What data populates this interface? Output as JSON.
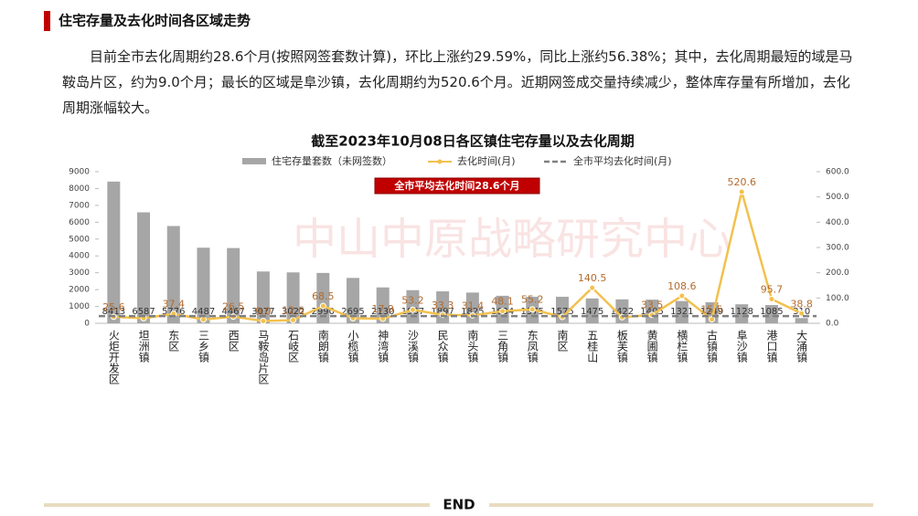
{
  "header": {
    "title": "住宅存量及去化时间各区域走势"
  },
  "paragraph": "目前全市去化周期约28.6个月(按照网签套数计算)，环比上涨约29.59%，同比上涨约56.38%；其中，去化周期最短的域是马鞍岛片区，约为9.0个月；最长的区域是阜沙镇，去化周期约为520.6个月。近期网签成交量持续减少，整体库存量有所增加，去化周期涨幅较大。",
  "footer": "END",
  "chart_data": {
    "type": "bar_line",
    "title": "截至2023年10月08日各区镇住宅存量以及去化周期",
    "categories": [
      "火炬开发区",
      "坦洲镇",
      "东区",
      "三乡镇",
      "西区",
      "马鞍岛片区",
      "石岐区",
      "南朗镇",
      "小榄镇",
      "神湾镇",
      "沙溪镇",
      "民众镇",
      "南头镇",
      "三角镇",
      "东凤镇",
      "南区",
      "五桂山",
      "板芙镇",
      "黄圃镇",
      "横栏镇",
      "古镇镇",
      "阜沙镇",
      "港口镇",
      "大涌镇"
    ],
    "series": [
      {
        "name": "住宅存量套数（未网签数）",
        "color": "#a6a6a6",
        "type": "bar",
        "values": [
          8413,
          6587,
          5776,
          4487,
          4467,
          3077,
          3022,
          2990,
          2695,
          2130,
          1967,
          1897,
          1825,
          1634,
          1575,
          1575,
          1475,
          1422,
          1405,
          1321,
          1249,
          1128,
          1085,
          310
        ]
      },
      {
        "name": "去化时间(月)",
        "color": "#f2c14e",
        "type": "line",
        "axis": "y2",
        "values": [
          25.6,
          20,
          37.4,
          15,
          26.5,
          9.0,
          12.6,
          68.5,
          20,
          17.9,
          53.2,
          33.3,
          31.4,
          48.1,
          55.2,
          25,
          140.5,
          24,
          33.5,
          108.6,
          15.5,
          520.6,
          95.7,
          38.8
        ],
        "value_labels": [
          "25.6",
          null,
          "37.4",
          null,
          "26.5",
          "9.0",
          "12.6",
          "68.5",
          null,
          "17.9",
          "53.2",
          "33.3",
          "31.4",
          "48.1",
          "55.2",
          null,
          "140.5",
          null,
          "33.5",
          "108.6",
          "15.5",
          "520.6",
          "95.7",
          "38.8"
        ]
      },
      {
        "name": "全市平均去化时间(月)",
        "color": "#808080",
        "type": "hline",
        "axis": "y2",
        "value": 28.6
      }
    ],
    "annotation": "全市平均去化时间28.6个月",
    "ylim": [
      0,
      9000
    ],
    "yticks": [
      0,
      1000,
      2000,
      3000,
      4000,
      5000,
      6000,
      7000,
      8000,
      9000
    ],
    "y2lim": [
      0,
      600
    ],
    "y2ticks": [
      {
        "value": 0,
        "label": "0.0"
      },
      {
        "value": 100,
        "label": "100.0"
      },
      {
        "value": 200,
        "label": "200.0"
      },
      {
        "value": 300,
        "label": "300.0"
      },
      {
        "value": 400,
        "label": "400.0"
      },
      {
        "value": 500,
        "label": "500.0"
      },
      {
        "value": 600,
        "label": "600.0"
      }
    ]
  }
}
